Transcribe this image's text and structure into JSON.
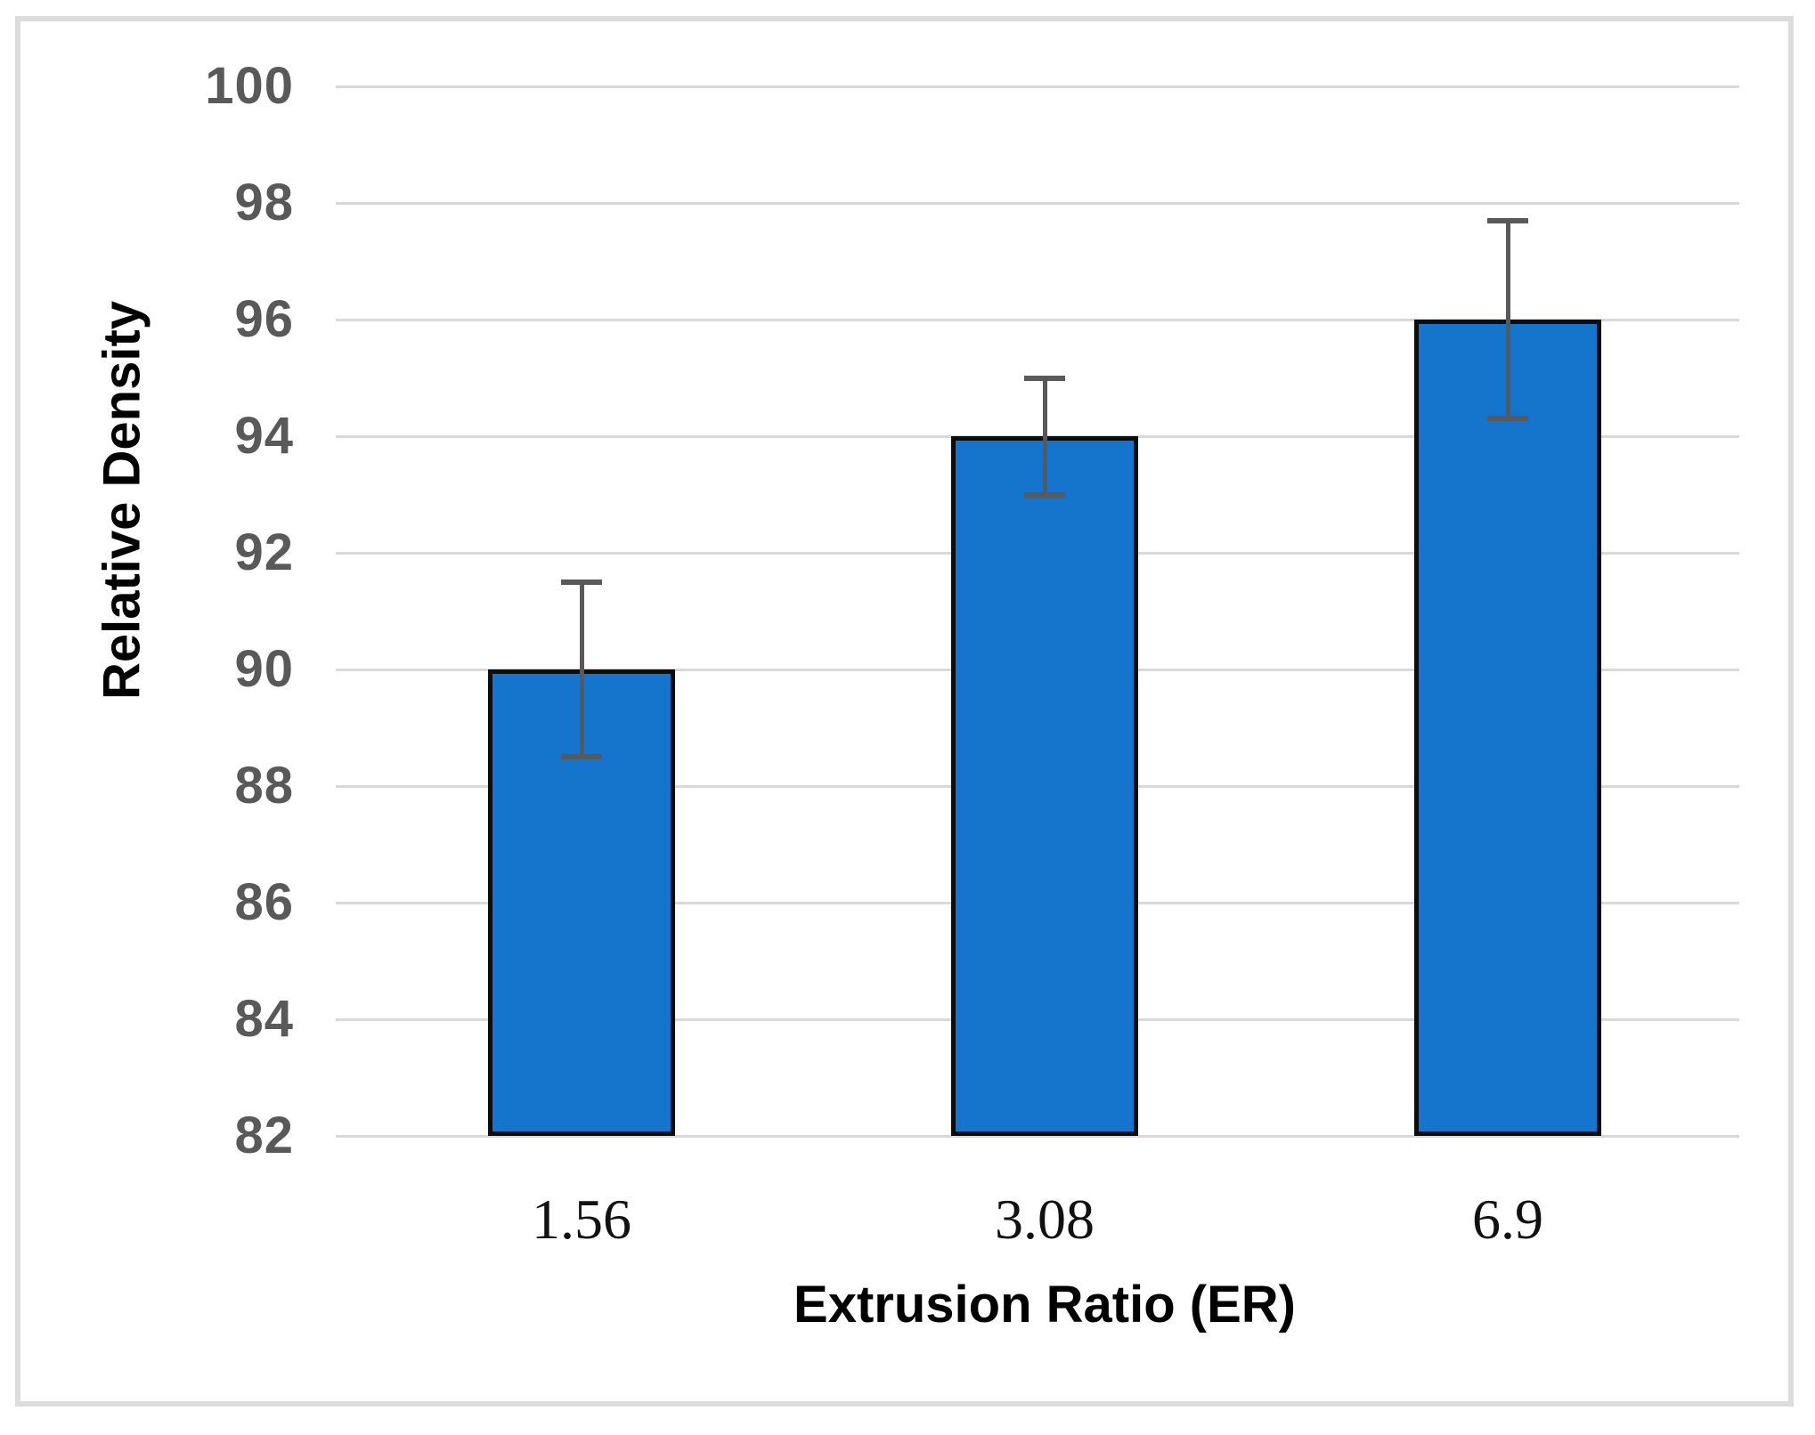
{
  "chart_data": {
    "type": "bar",
    "title": "",
    "xlabel": "Extrusion Ratio (ER)",
    "ylabel": "Relative Density",
    "categories": [
      "1.56",
      "3.08",
      "6.9"
    ],
    "values": [
      90,
      94,
      96
    ],
    "error_bars_plus": [
      1.5,
      1.0,
      1.7
    ],
    "error_bars_minus": [
      1.5,
      1.0,
      1.7
    ],
    "ylim": [
      82,
      100
    ],
    "ytick_step": 2,
    "ytick_labels": [
      "82",
      "84",
      "86",
      "88",
      "90",
      "92",
      "94",
      "96",
      "98",
      "100"
    ],
    "grid": "horizontal-on",
    "legend_position": "none",
    "colors": {
      "bar_fill": "#1574CB",
      "bar_border": "#0d0d0d",
      "error_bar": "#595959",
      "gridline": "#D9D9D9",
      "ytick_text": "#595959",
      "xtick_text": "#111111",
      "frame": "#DCDCDC"
    }
  }
}
